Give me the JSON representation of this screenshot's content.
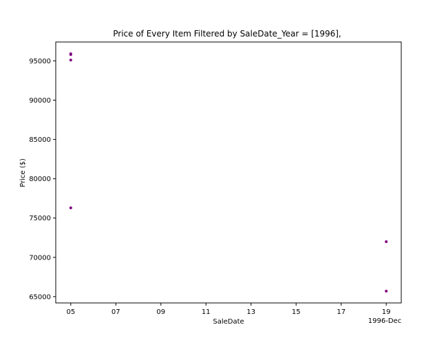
{
  "chart_data": {
    "type": "scatter",
    "title": "Price of Every Item Filtered by SaleDate_Year = [1996],",
    "xlabel": "SaleDate",
    "ylabel": "Price ($)",
    "x_offset_label": "1996-Dec",
    "x_tick_labels": [
      "05",
      "07",
      "09",
      "11",
      "13",
      "15",
      "17",
      "19"
    ],
    "x_ticks": [
      "1996-12-05",
      "1996-12-07",
      "1996-12-09",
      "1996-12-11",
      "1996-12-13",
      "1996-12-15",
      "1996-12-17",
      "1996-12-19"
    ],
    "y_ticks": [
      65000,
      70000,
      75000,
      80000,
      85000,
      90000,
      95000
    ],
    "xlim": [
      "1996-12-04 08:00",
      "1996-12-19 16:00"
    ],
    "ylim": [
      64200,
      97400
    ],
    "grid": false,
    "marker_color": "#800080",
    "points": [
      {
        "x": "1996-12-05",
        "y": 95900
      },
      {
        "x": "1996-12-05",
        "y": 95800
      },
      {
        "x": "1996-12-05",
        "y": 95100
      },
      {
        "x": "1996-12-05",
        "y": 76300
      },
      {
        "x": "1996-12-19",
        "y": 72000
      },
      {
        "x": "1996-12-19",
        "y": 65700
      }
    ]
  }
}
